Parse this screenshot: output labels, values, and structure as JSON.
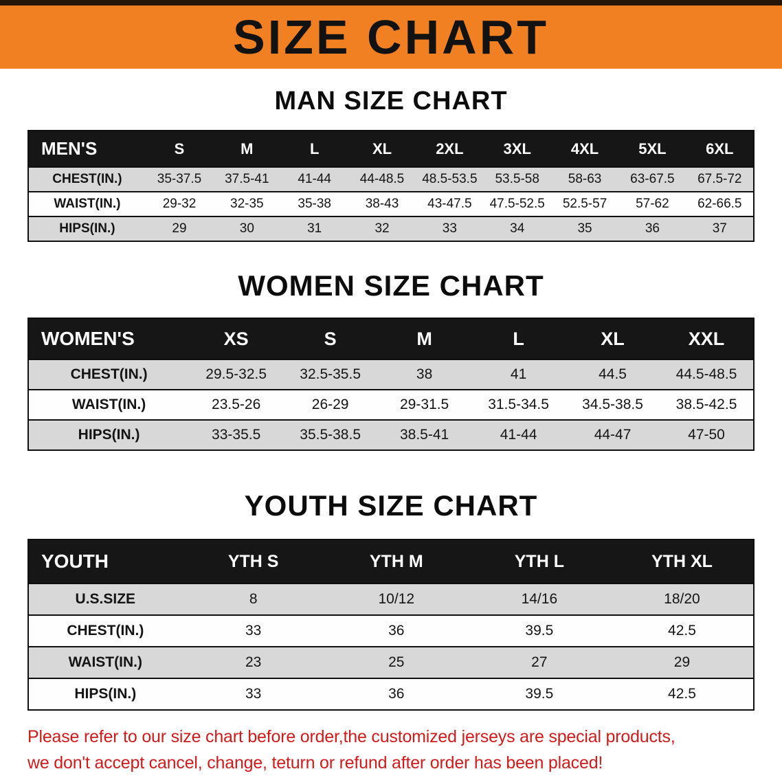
{
  "banner": {
    "title": "SIZE CHART"
  },
  "colors": {
    "banner_bg": "#f08021",
    "table_header_bg": "#161616",
    "stripe_row_bg": "#d8d8d8",
    "disclaimer_text": "#cf1b1b"
  },
  "sections": [
    {
      "heading": "MAN SIZE CHART",
      "table": {
        "label": "MEN'S",
        "columns": [
          "S",
          "M",
          "L",
          "XL",
          "2XL",
          "3XL",
          "4XL",
          "5XL",
          "6XL"
        ],
        "rows": [
          {
            "label": "CHEST(IN.)",
            "values": [
              "35-37.5",
              "37.5-41",
              "41-44",
              "44-48.5",
              "48.5-53.5",
              "53.5-58",
              "58-63",
              "63-67.5",
              "67.5-72"
            ]
          },
          {
            "label": "WAIST(IN.)",
            "values": [
              "29-32",
              "32-35",
              "35-38",
              "38-43",
              "43-47.5",
              "47.5-52.5",
              "52.5-57",
              "57-62",
              "62-66.5"
            ]
          },
          {
            "label": "HIPS(IN.)",
            "values": [
              "29",
              "30",
              "31",
              "32",
              "33",
              "34",
              "35",
              "36",
              "37"
            ]
          }
        ]
      }
    },
    {
      "heading": "WOMEN SIZE CHART",
      "table": {
        "label": "WOMEN'S",
        "columns": [
          "XS",
          "S",
          "M",
          "L",
          "XL",
          "XXL"
        ],
        "rows": [
          {
            "label": "CHEST(IN.)",
            "values": [
              "29.5-32.5",
              "32.5-35.5",
              "38",
              "41",
              "44.5",
              "44.5-48.5"
            ]
          },
          {
            "label": "WAIST(IN.)",
            "values": [
              "23.5-26",
              "26-29",
              "29-31.5",
              "31.5-34.5",
              "34.5-38.5",
              "38.5-42.5"
            ]
          },
          {
            "label": "HIPS(IN.)",
            "values": [
              "33-35.5",
              "35.5-38.5",
              "38.5-41",
              "41-44",
              "44-47",
              "47-50"
            ]
          }
        ]
      }
    },
    {
      "heading": "YOUTH SIZE CHART",
      "table": {
        "label": "YOUTH",
        "columns": [
          "YTH S",
          "YTH M",
          "YTH L",
          "YTH XL"
        ],
        "rows": [
          {
            "label": "U.S.SIZE",
            "values": [
              "8",
              "10/12",
              "14/16",
              "18/20"
            ]
          },
          {
            "label": "CHEST(IN.)",
            "values": [
              "33",
              "36",
              "39.5",
              "42.5"
            ]
          },
          {
            "label": "WAIST(IN.)",
            "values": [
              "23",
              "25",
              "27",
              "29"
            ]
          },
          {
            "label": "HIPS(IN.)",
            "values": [
              "33",
              "36",
              "39.5",
              "42.5"
            ]
          }
        ]
      }
    }
  ],
  "footer": {
    "line1": "Please refer to our size chart before order,the customized jerseys are special products,",
    "line2": "we don't accept cancel, change, teturn or refund after order has been placed!"
  }
}
